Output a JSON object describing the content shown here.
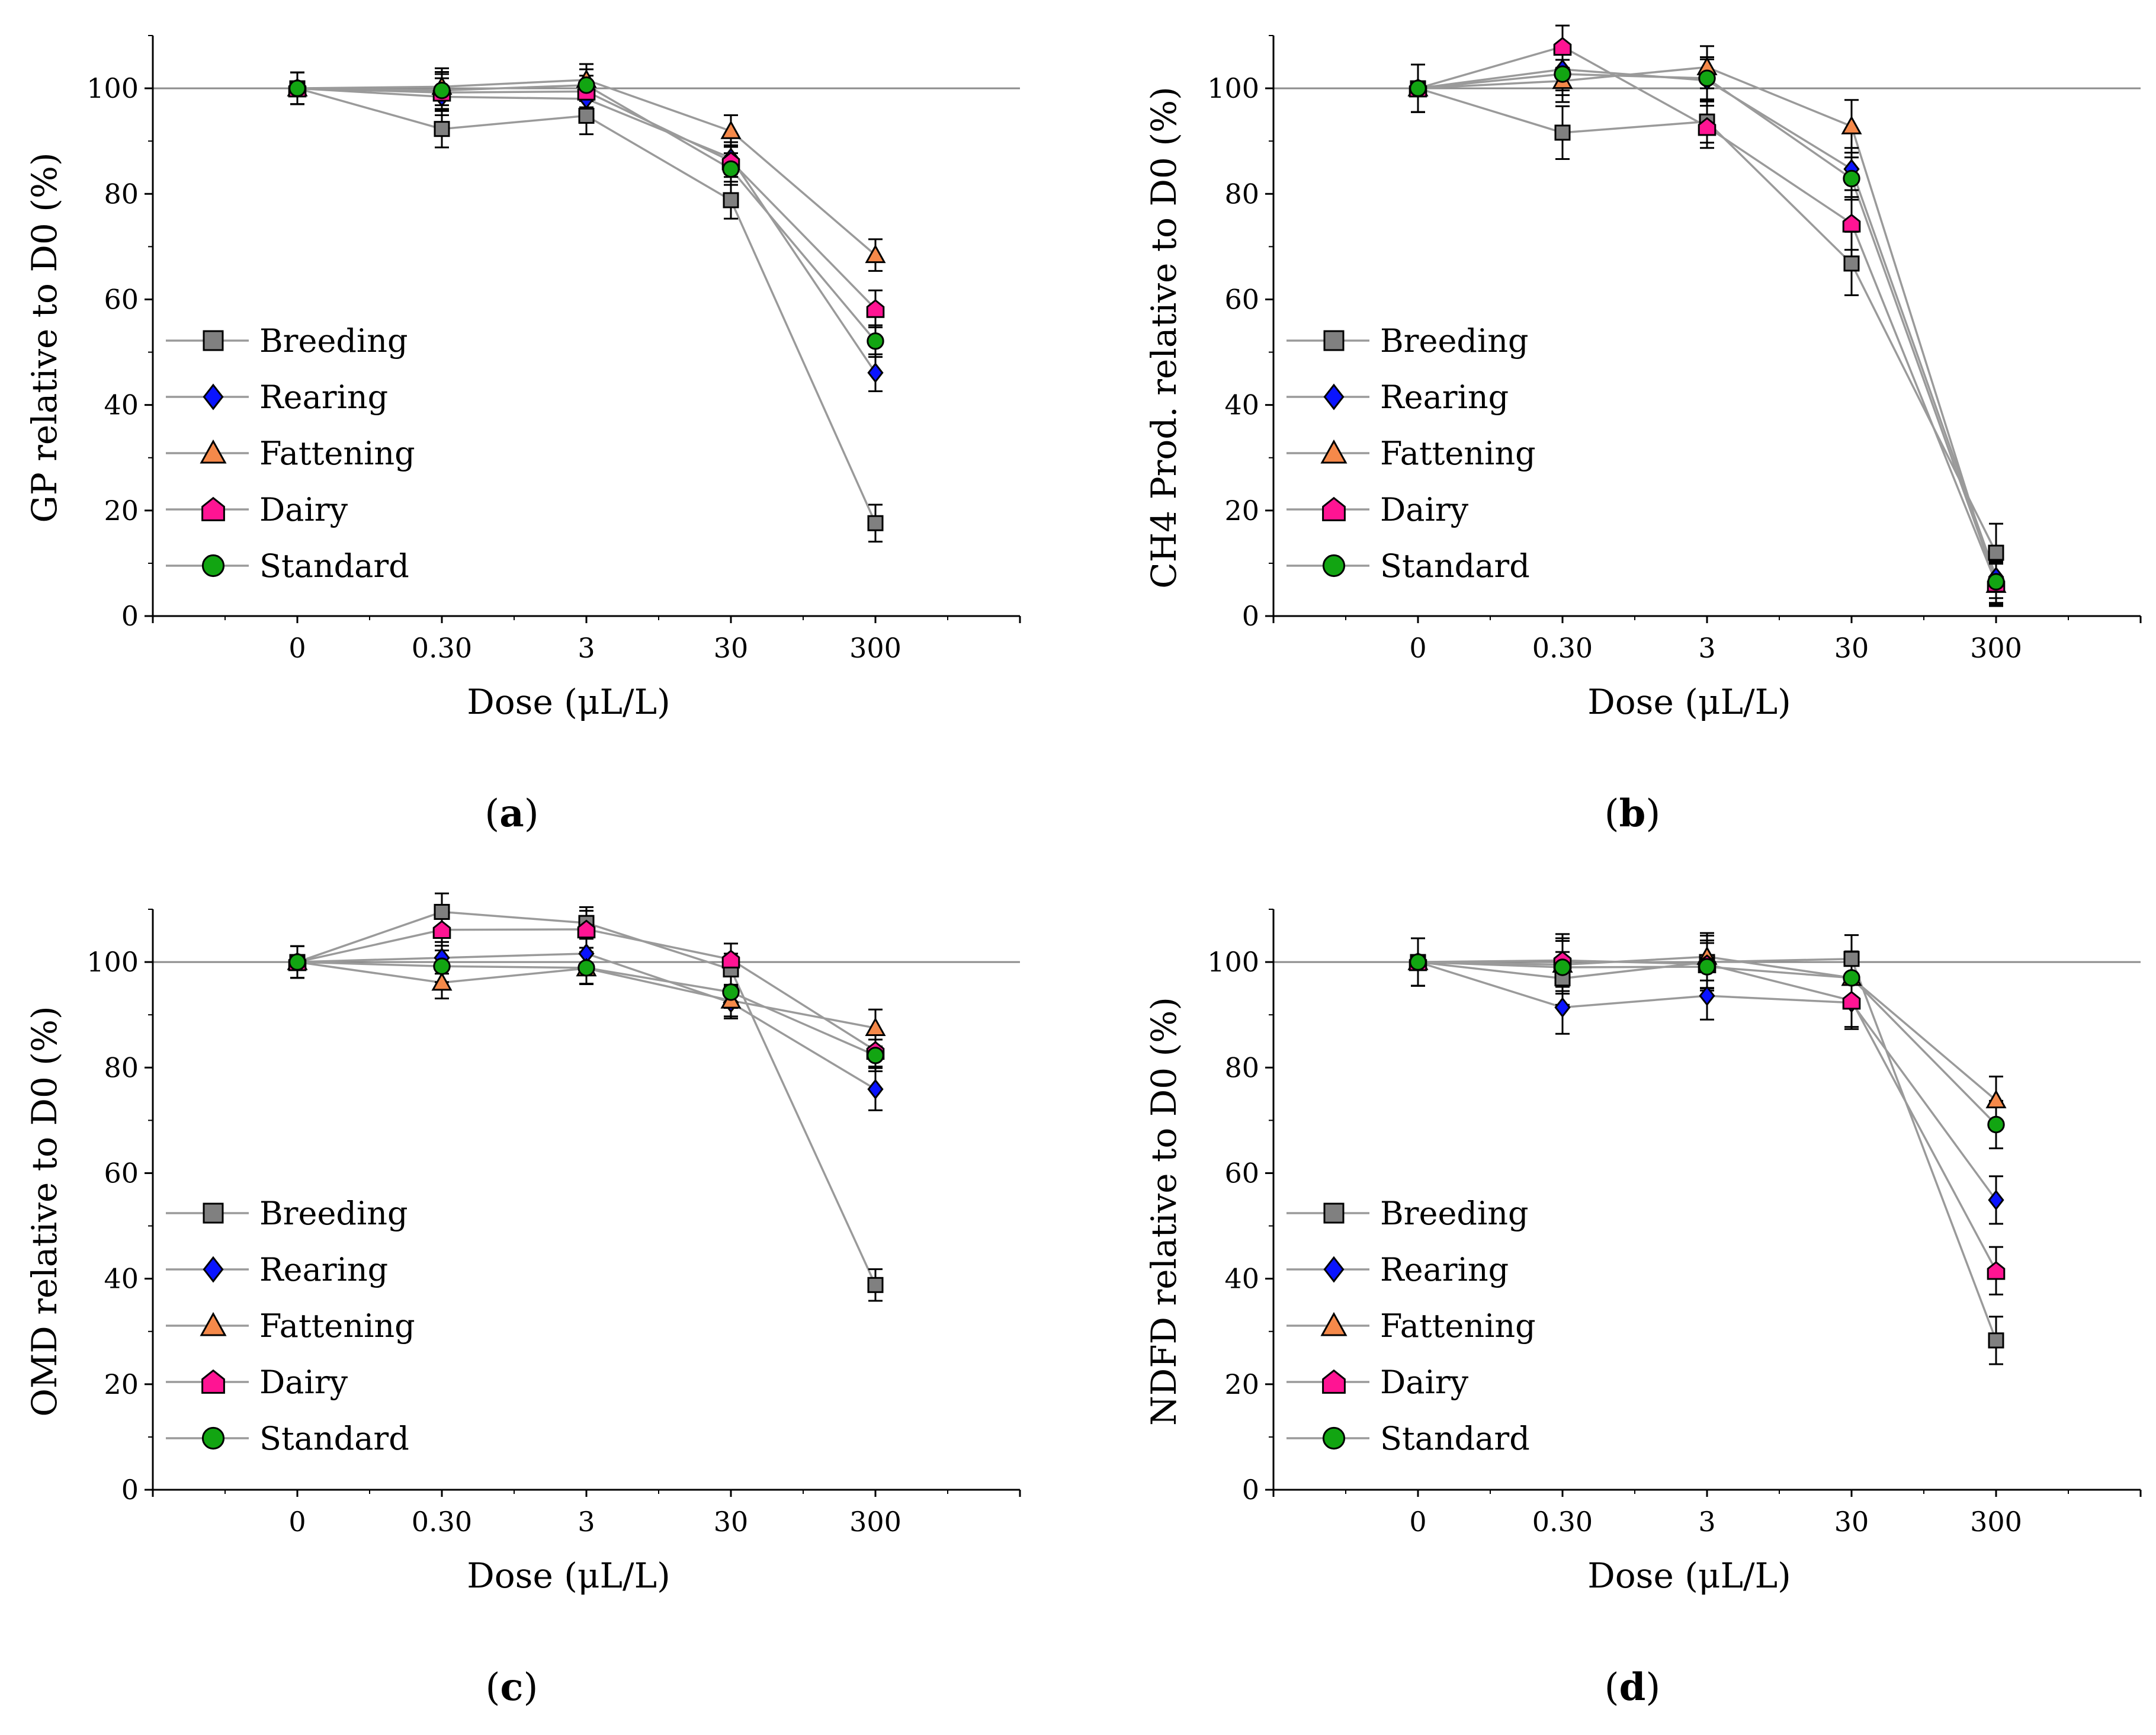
{
  "chart_data": [
    {
      "type": "line",
      "panel_label": "a",
      "ylabel": "GP relative to D0 (%)",
      "xlabel": "Dose (μL/L)",
      "categories": [
        "0",
        "0.30",
        "3",
        "30",
        "300"
      ],
      "ylim": [
        0,
        110
      ],
      "yticks": [
        "0",
        "20",
        "40",
        "60",
        "80",
        "100"
      ],
      "reference_line": 100,
      "series": [
        {
          "name": "Breeding",
          "values": [
            100,
            92.3,
            94.8,
            78.8,
            17.6
          ],
          "errors": [
            3,
            3.5,
            3.5,
            3.5,
            3.5
          ]
        },
        {
          "name": "Rearing",
          "values": [
            100,
            98.4,
            98.0,
            86.8,
            46.1
          ],
          "errors": [
            3,
            3.5,
            3,
            3,
            3.5
          ]
        },
        {
          "name": "Fattening",
          "values": [
            100,
            100.3,
            101.6,
            91.9,
            68.4
          ],
          "errors": [
            3,
            3.5,
            3,
            3,
            3
          ]
        },
        {
          "name": "Dairy",
          "values": [
            100,
            99.2,
            99.4,
            86.2,
            58.2
          ],
          "errors": [
            3,
            3.5,
            3,
            3,
            3.5
          ]
        },
        {
          "name": "Standard",
          "values": [
            100,
            99.6,
            100.6,
            84.7,
            52.1
          ],
          "errors": [
            3,
            3.5,
            3,
            3,
            3
          ]
        }
      ]
    },
    {
      "type": "line",
      "panel_label": "b",
      "ylabel": "CH4 Prod. relative to D0 (%)",
      "xlabel": "Dose (μL/L)",
      "categories": [
        "0",
        "0.30",
        "3",
        "30",
        "300"
      ],
      "ylim": [
        0,
        110
      ],
      "yticks": [
        "0",
        "20",
        "40",
        "60",
        "80",
        "100"
      ],
      "reference_line": 100,
      "series": [
        {
          "name": "Breeding",
          "values": [
            100,
            91.6,
            93.7,
            66.8,
            12.0
          ],
          "errors": [
            4.5,
            5,
            4,
            6,
            5.5
          ]
        },
        {
          "name": "Rearing",
          "values": [
            100,
            103.6,
            101.5,
            84.7,
            7.4
          ],
          "errors": [
            4.5,
            4,
            4,
            4,
            4
          ]
        },
        {
          "name": "Fattening",
          "values": [
            100,
            101.4,
            104.0,
            92.8,
            5.9
          ],
          "errors": [
            4.5,
            4,
            4,
            5,
            4
          ]
        },
        {
          "name": "Dairy",
          "values": [
            100,
            107.9,
            92.7,
            74.4,
            6.2
          ],
          "errors": [
            4.5,
            4,
            4,
            5,
            4
          ]
        },
        {
          "name": "Standard",
          "values": [
            100,
            102.7,
            101.9,
            82.9,
            6.5
          ],
          "errors": [
            4.5,
            4,
            4,
            4,
            4
          ]
        }
      ]
    },
    {
      "type": "line",
      "panel_label": "c",
      "ylabel": "OMD relative to D0 (%)",
      "xlabel": "Dose (μL/L)",
      "categories": [
        "0",
        "0.30",
        "3",
        "30",
        "300"
      ],
      "ylim": [
        0,
        110
      ],
      "yticks": [
        "0",
        "20",
        "40",
        "60",
        "80",
        "100"
      ],
      "reference_line": 100,
      "series": [
        {
          "name": "Breeding",
          "values": [
            100,
            109.5,
            107.4,
            98.6,
            38.8
          ],
          "errors": [
            3,
            3.5,
            3,
            3,
            3
          ]
        },
        {
          "name": "Rearing",
          "values": [
            100,
            100.8,
            101.6,
            92.3,
            75.9
          ],
          "errors": [
            3,
            3,
            3,
            3,
            4
          ]
        },
        {
          "name": "Fattening",
          "values": [
            100,
            96.1,
            98.8,
            92.7,
            87.5
          ],
          "errors": [
            3,
            3,
            3,
            3,
            3.5
          ]
        },
        {
          "name": "Dairy",
          "values": [
            100,
            106.1,
            106.2,
            100.5,
            83.2
          ],
          "errors": [
            3,
            3,
            3.5,
            3,
            3
          ]
        },
        {
          "name": "Standard",
          "values": [
            100,
            99.2,
            98.9,
            94.3,
            82.3
          ],
          "errors": [
            3,
            3,
            3,
            3,
            3
          ]
        }
      ]
    },
    {
      "type": "line",
      "panel_label": "d",
      "ylabel": "NDFD relative to D0 (%)",
      "xlabel": "Dose (μL/L)",
      "categories": [
        "0",
        "0.30",
        "3",
        "30",
        "300"
      ],
      "ylim": [
        0,
        110
      ],
      "yticks": [
        "0",
        "20",
        "40",
        "60",
        "80",
        "100"
      ],
      "reference_line": 100,
      "series": [
        {
          "name": "Breeding",
          "values": [
            100,
            96.9,
            100.0,
            100.6,
            28.3
          ],
          "errors": [
            4.5,
            5,
            5,
            4.5,
            4.5
          ]
        },
        {
          "name": "Rearing",
          "values": [
            100,
            91.4,
            93.6,
            92.3,
            54.9
          ],
          "errors": [
            4.5,
            5,
            4.5,
            5,
            4.5
          ]
        },
        {
          "name": "Fattening",
          "values": [
            100,
            99.5,
            101.0,
            97.0,
            73.8
          ],
          "errors": [
            4.5,
            5,
            4.5,
            5,
            4.5
          ]
        },
        {
          "name": "Dairy",
          "values": [
            100,
            100.3,
            99.6,
            92.7,
            41.5
          ],
          "errors": [
            4.5,
            5,
            4.5,
            5,
            4.5
          ]
        },
        {
          "name": "Standard",
          "values": [
            100,
            99.0,
            99.1,
            97.0,
            69.2
          ],
          "errors": [
            4.5,
            5,
            4.5,
            5,
            4.5
          ]
        }
      ]
    }
  ],
  "legend": [
    {
      "name": "Breeding",
      "marker": "square-icon",
      "color": "#808080"
    },
    {
      "name": "Rearing",
      "marker": "diamond-icon",
      "color": "#0a14ff"
    },
    {
      "name": "Fattening",
      "marker": "triangle-icon",
      "color": "#f5894a"
    },
    {
      "name": "Dairy",
      "marker": "pentagon-icon",
      "color": "#ff1493"
    },
    {
      "name": "Standard",
      "marker": "circle-icon",
      "color": "#12a512"
    }
  ],
  "line_color": "#9a9a9a"
}
